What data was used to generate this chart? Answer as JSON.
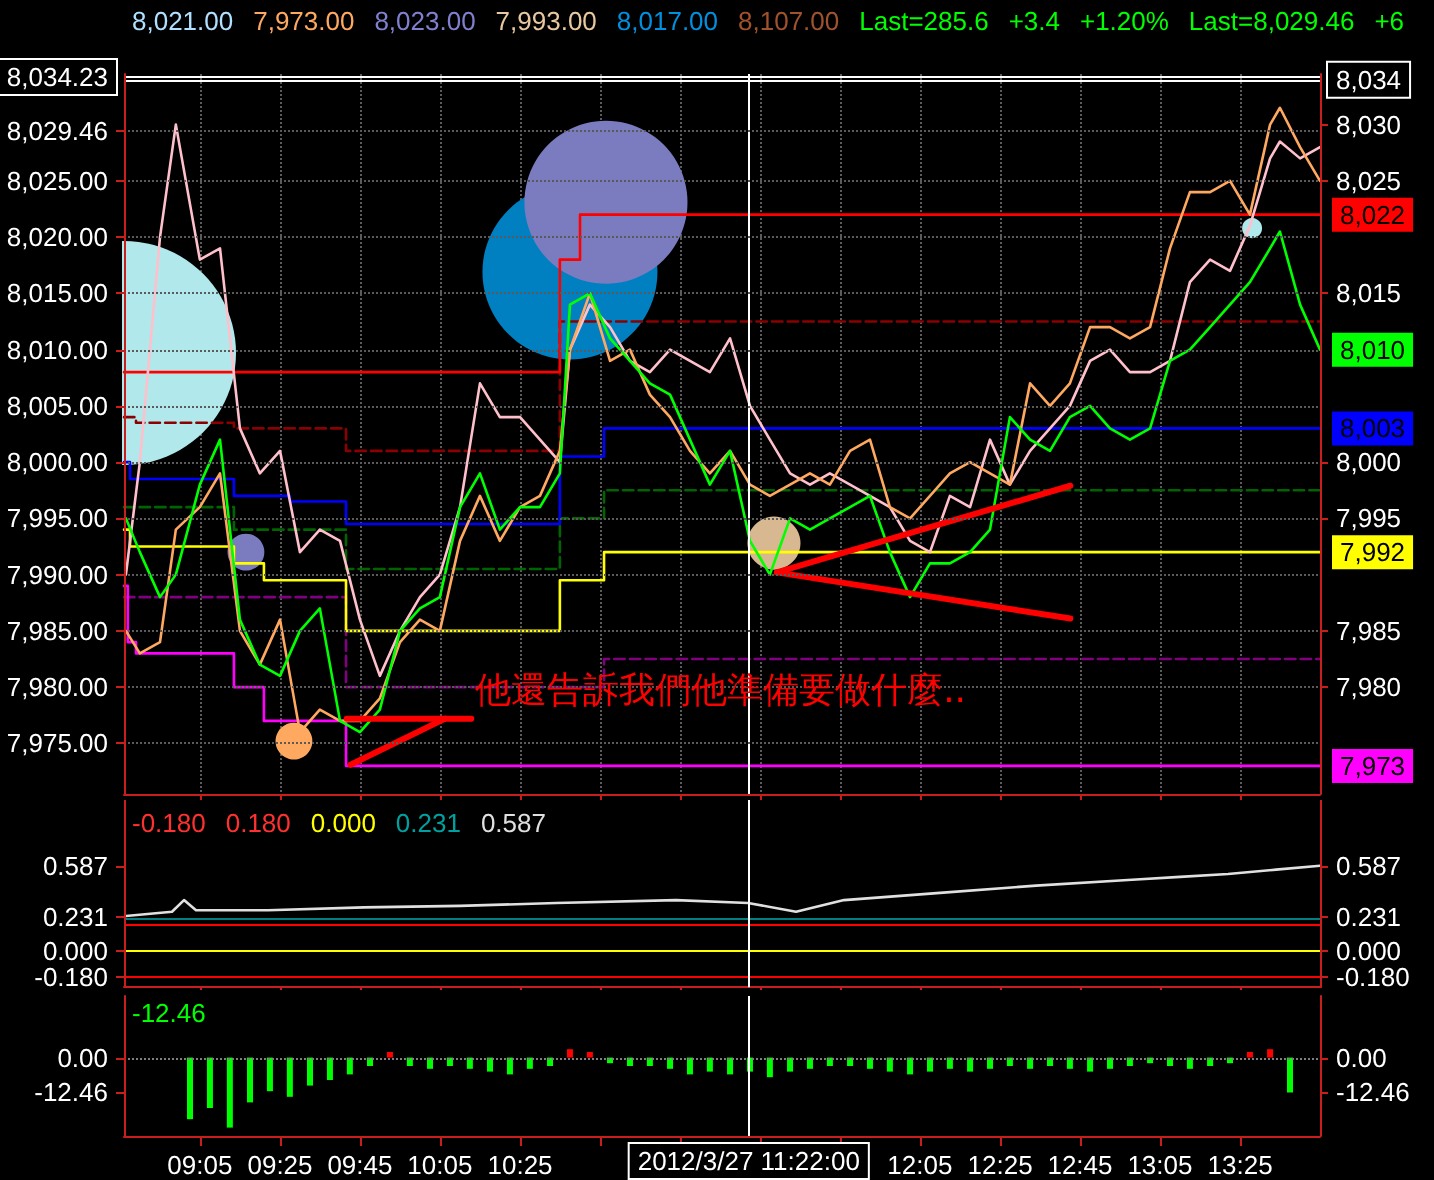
{
  "chart_data": [
    {
      "type": "line",
      "xlim": [
        8.767,
        13.75
      ],
      "ylim": [
        7970.5,
        8034.5
      ],
      "y2lim": [
        7970.5,
        8034.5
      ],
      "grid": true,
      "marker": "none",
      "tick_labels": "y",
      "xticks": [
        {
          "value": 9.083,
          "label": null
        },
        {
          "value": 9.417,
          "label": null
        },
        {
          "value": 9.75,
          "label": null
        },
        {
          "value": 10.083,
          "label": null
        },
        {
          "value": 10.417,
          "label": null
        },
        {
          "value": 10.75,
          "label": null
        },
        {
          "value": 11.083,
          "label": null
        },
        {
          "value": 11.417,
          "label": null
        },
        {
          "value": 11.75,
          "label": null
        },
        {
          "value": 12.083,
          "label": null
        },
        {
          "value": 12.417,
          "label": null
        },
        {
          "value": 12.75,
          "label": null
        },
        {
          "value": 13.083,
          "label": null
        },
        {
          "value": 13.417,
          "label": null
        }
      ],
      "yticks": [
        {
          "value": 7975,
          "label": "7,975.00"
        },
        {
          "value": 7980,
          "label": "7,980.00"
        },
        {
          "value": 7985,
          "label": "7,985.00"
        },
        {
          "value": 7990,
          "label": "7,990.00"
        },
        {
          "value": 7995,
          "label": "7,995.00"
        },
        {
          "value": 8000,
          "label": "8,000.00"
        },
        {
          "value": 8005,
          "label": "8,005.00"
        },
        {
          "value": 8010,
          "label": "8,010.00"
        },
        {
          "value": 8015,
          "label": "8,015.00"
        },
        {
          "value": 8020,
          "label": "8,020.00"
        },
        {
          "value": 8025,
          "label": "8,025.00"
        },
        {
          "value": 8029.46,
          "label": "8,029.46"
        }
      ],
      "y2ticks": [
        {
          "value": 7980,
          "label": "7,980"
        },
        {
          "value": 7985,
          "label": "7,985"
        },
        {
          "value": 7995,
          "label": "7,995"
        },
        {
          "value": 8000,
          "label": "8,000"
        },
        {
          "value": 8015,
          "label": "8,015"
        },
        {
          "value": 8025,
          "label": "8,025"
        },
        {
          "value": 8030,
          "label": "8,030"
        }
      ],
      "x": [
        8.775,
        8.833,
        8.917,
        8.983,
        9.083,
        9.167,
        9.25,
        9.333,
        9.417,
        9.5,
        9.583,
        9.667,
        9.75,
        9.833,
        9.917,
        10.0,
        10.083,
        10.167,
        10.25,
        10.333,
        10.417,
        10.5,
        10.583,
        10.625,
        10.708,
        10.792,
        10.875,
        10.958,
        11.042,
        11.125,
        11.208,
        11.292,
        11.375,
        11.458,
        11.542,
        11.625,
        11.708,
        11.792,
        11.875,
        11.958,
        12.042,
        12.125,
        12.208,
        12.292,
        12.375,
        12.458,
        12.542,
        12.625,
        12.708,
        12.792,
        12.875,
        12.958,
        13.042,
        13.125,
        13.208,
        13.292,
        13.375,
        13.458,
        13.542,
        13.583,
        13.667,
        13.75
      ],
      "series": [
        {
          "type": "bubble",
          "marker": "circle",
          "x": [
            8.767,
            10.625,
            10.775,
            11.475,
            9.275,
            9.475,
            13.467
          ],
          "values": [
            8009.7,
            8016.9,
            8023.1,
            7992.8,
            7992,
            7975.2,
            8020.8
          ],
          "sizes": [
            1,
            0.61,
            0.53,
            0.056,
            0.027,
            0.027,
            0.008
          ],
          "colors": [
            "#b0e8ec",
            "#0080c0",
            "#7b7bbf",
            "#d8b890",
            "#7b7bbf",
            "#ffa860",
            "#b0e8ec"
          ]
        },
        {
          "type": "step",
          "color": "#8b0000",
          "line_style": "dashed",
          "x": [
            8.767,
            8.817,
            9.225,
            9.692,
            10.583,
            13.75
          ],
          "values": [
            8004,
            8003.5,
            8003,
            8001,
            8012.5,
            8012.5
          ]
        },
        {
          "type": "step",
          "color": "#006400",
          "line_style": "dashed",
          "x": [
            8.767,
            9.225,
            9.692,
            10.583,
            10.767,
            13.75
          ],
          "values": [
            7996,
            7994,
            7990.5,
            7995,
            7997.5,
            7997.5
          ]
        },
        {
          "type": "step",
          "color": "#800080",
          "line_style": "dashed",
          "x": [
            8.767,
            9.692,
            10.767,
            13.75
          ],
          "values": [
            7988,
            7980,
            7982.5,
            7982.5
          ]
        },
        {
          "type": "step",
          "color": "#ff0000",
          "x": [
            8.767,
            10.583,
            10.667,
            13.75
          ],
          "values": [
            8008,
            8018,
            8022,
            8022
          ],
          "value_labels": [
            null,
            null,
            null,
            "8,022"
          ]
        },
        {
          "type": "step",
          "color": "#0000ff",
          "x": [
            8.767,
            8.792,
            9.225,
            9.458,
            9.692,
            10.583,
            10.767,
            13.75
          ],
          "values": [
            8000,
            7998.5,
            7997,
            7996.5,
            7994.5,
            8000.5,
            8003,
            8003
          ],
          "value_labels": [
            null,
            null,
            null,
            null,
            null,
            null,
            null,
            "8,003"
          ]
        },
        {
          "type": "step",
          "color": "#ffff00",
          "x": [
            8.767,
            8.792,
            9.225,
            9.35,
            9.692,
            10.583,
            10.767,
            13.75
          ],
          "values": [
            7994,
            7992.5,
            7991,
            7989.5,
            7985,
            7989.5,
            7992,
            7992
          ],
          "value_labels": [
            null,
            null,
            null,
            null,
            null,
            null,
            null,
            "7,992"
          ]
        },
        {
          "type": "step",
          "color": "#ff00ff",
          "x": [
            8.767,
            8.783,
            8.817,
            9.225,
            9.35,
            9.692,
            13.75
          ],
          "values": [
            7989,
            7984,
            7983,
            7980,
            7977,
            7973,
            7973
          ],
          "value_labels": [
            null,
            null,
            null,
            null,
            null,
            null,
            "7,973"
          ]
        },
        {
          "color": "#ffc0cb",
          "values": [
            7990,
            8000,
            8020,
            8030,
            8018,
            8019,
            8003,
            7999,
            8001,
            7992,
            7994,
            7993,
            7986,
            7981,
            7985,
            7988,
            7990,
            7996,
            8007,
            8004,
            8004,
            8002,
            8000,
            8010,
            8014,
            8012,
            8009,
            8008,
            8010,
            8009,
            8008,
            8011,
            8005,
            8002,
            7999,
            7998,
            7999,
            7998,
            7997,
            7996,
            7993,
            7992,
            7997,
            7996,
            8002,
            7998,
            8001,
            8003,
            8005,
            8009,
            8010,
            8008,
            8008,
            8009,
            8016,
            8018,
            8017,
            8021,
            8027,
            8028.5,
            8027,
            8028
          ]
        },
        {
          "color": "#ffa860",
          "values": [
            7985,
            7983,
            7984,
            7994,
            7996,
            7999,
            7985,
            7982,
            7986,
            7976,
            7978,
            7977,
            7977,
            7979,
            7984,
            7986,
            7985,
            7993,
            7997,
            7993,
            7996,
            7997,
            8001,
            8010,
            8015,
            8009,
            8010,
            8006,
            8004,
            8001,
            7999,
            8001,
            7998,
            7997,
            7998,
            7999,
            7998,
            8001,
            8002,
            7996,
            7995,
            7997,
            7999,
            8000,
            7999,
            7998,
            8007,
            8005,
            8007,
            8012,
            8012,
            8011,
            8012,
            8019,
            8024,
            8024,
            8025,
            8022,
            8030,
            8031.5,
            8028,
            8025
          ]
        },
        {
          "color": "#00ff00",
          "values": [
            7995,
            7992,
            7988,
            7990,
            7998,
            8002,
            7986,
            7982,
            7981,
            7985,
            7987,
            7977,
            7976,
            7978,
            7985,
            7987,
            7988,
            7996,
            7999,
            7994,
            7996,
            7996,
            7999,
            8014,
            8015,
            8011,
            8009,
            8007,
            8006,
            8002,
            7998,
            8001,
            7993,
            7990,
            7995,
            7994,
            7995,
            7996,
            7997,
            7992,
            7988,
            7991,
            7991,
            7992,
            7994,
            8004,
            8002,
            8001,
            8004,
            8005,
            8003,
            8002,
            8003,
            8009,
            8010,
            8012,
            8014,
            8016,
            8019,
            8020.5,
            8014,
            8010
          ],
          "value_labels": [
            null,
            null,
            null,
            null,
            null,
            null,
            null,
            null,
            null,
            null,
            null,
            null,
            null,
            null,
            null,
            null,
            null,
            null,
            null,
            null,
            null,
            null,
            null,
            null,
            null,
            null,
            null,
            null,
            null,
            null,
            null,
            null,
            null,
            null,
            null,
            null,
            null,
            null,
            null,
            null,
            null,
            null,
            null,
            null,
            null,
            null,
            null,
            null,
            null,
            null,
            null,
            null,
            null,
            null,
            null,
            null,
            null,
            null,
            null,
            null,
            null,
            "8,010"
          ]
        },
        {
          "color": "#ff0000",
          "x": [
            9.711,
            10.105
          ],
          "values": [
            7973.1,
            7977.2
          ]
        },
        {
          "color": "#ff0000",
          "x": [
            9.695,
            10.214
          ],
          "values": [
            7977.2,
            7977.2
          ]
        },
        {
          "color": "#ff0000",
          "x": [
            11.487,
            12.71
          ],
          "values": [
            7990.2,
            7997.9
          ]
        },
        {
          "color": "#ff0000",
          "x": [
            11.487,
            12.71
          ],
          "values": [
            7990.2,
            7986.1
          ]
        }
      ],
      "ref_lines": [
        {
          "axis": "y",
          "value": 8034.23,
          "label": "8,034.23",
          "color": "#ffffff"
        },
        {
          "axis": "y2",
          "value": 8034,
          "label": "8,034",
          "color": "#ffffff"
        },
        {
          "axis": "x",
          "value": 11.367,
          "color": "#ffffff"
        }
      ],
      "annotations": [
        "8,021.00",
        "7,973.00",
        "8,023.00",
        "7,993.00",
        "8,017.00",
        "8,107.00",
        "Last=285.6",
        "+3.4",
        "+1.20%",
        "Last=8,029.46",
        "+6",
        {
          "text": "他還告訴我們他準備要做什麼..",
          "x": 10.23,
          "y": 7979.5
        }
      ]
    },
    {
      "type": "line",
      "xlim": [
        8.767,
        13.75
      ],
      "ylim": [
        -0.25,
        1.04
      ],
      "y2lim": [
        -0.25,
        1.04
      ],
      "marker": "none",
      "tick_labels": "y",
      "xticks": [
        {
          "value": 9.083,
          "label": null
        },
        {
          "value": 9.417,
          "label": null
        },
        {
          "value": 9.75,
          "label": null
        },
        {
          "value": 10.083,
          "label": null
        },
        {
          "value": 10.417,
          "label": null
        },
        {
          "value": 10.75,
          "label": null
        },
        {
          "value": 11.083,
          "label": null
        },
        {
          "value": 11.417,
          "label": null
        },
        {
          "value": 11.75,
          "label": null
        },
        {
          "value": 12.083,
          "label": null
        },
        {
          "value": 12.417,
          "label": null
        },
        {
          "value": 12.75,
          "label": null
        },
        {
          "value": 13.083,
          "label": null
        },
        {
          "value": 13.417,
          "label": null
        }
      ],
      "yticks": [
        {
          "value": -0.18,
          "label": "-0.180"
        },
        {
          "value": 0,
          "label": "0.000"
        },
        0.231,
        0.587
      ],
      "y2ticks": [
        {
          "value": -0.18,
          "label": "-0.180"
        },
        {
          "value": 0,
          "label": "0.000"
        },
        0.231,
        0.587
      ],
      "series": [
        {
          "color": "#e0e0e0",
          "x": [
            8.775,
            8.967,
            9.017,
            9.067,
            9.367,
            9.767,
            10.167,
            10.567,
            11.067,
            11.367,
            11.567,
            11.767,
            12.167,
            12.567,
            12.967,
            13.167,
            13.367,
            13.567,
            13.75
          ],
          "values": [
            0.24,
            0.27,
            0.35,
            0.28,
            0.28,
            0.3,
            0.31,
            0.33,
            0.35,
            0.33,
            0.27,
            0.35,
            0.4,
            0.45,
            0.49,
            0.51,
            0.53,
            0.56,
            0.587
          ]
        }
      ],
      "ref_lines": [
        {
          "axis": "y",
          "value": 0.231,
          "color": "#008080"
        },
        {
          "axis": "y",
          "value": 0.18,
          "color": "#ff0000"
        },
        {
          "axis": "y",
          "value": 0,
          "color": "#ffff00"
        },
        {
          "axis": "y",
          "value": -0.18,
          "color": "#ff0000"
        },
        {
          "axis": "x",
          "value": 11.367,
          "color": "#ffffff"
        }
      ],
      "annotations": [
        "-0.180",
        "0.180",
        "0.000",
        "0.231",
        "0.587"
      ]
    },
    {
      "type": "bar",
      "xlim": [
        8.767,
        13.75
      ],
      "ylim": [
        -28,
        22
      ],
      "y2lim": [
        -28,
        22
      ],
      "xticks": [
        {
          "value": 9.083,
          "label": "09:05"
        },
        {
          "value": 9.417,
          "label": "09:25"
        },
        {
          "value": 9.75,
          "label": "09:45"
        },
        {
          "value": 10.083,
          "label": "10:05"
        },
        {
          "value": 10.417,
          "label": "10:25"
        },
        {
          "value": 10.75,
          "label": null
        },
        {
          "value": 11.083,
          "label": null
        },
        {
          "value": 11.417,
          "label": null
        },
        {
          "value": 11.75,
          "label": null
        },
        {
          "value": 12.083,
          "label": "12:05"
        },
        {
          "value": 12.417,
          "label": "12:25"
        },
        {
          "value": 12.75,
          "label": "12:45"
        },
        {
          "value": 13.083,
          "label": "13:05"
        },
        {
          "value": 13.417,
          "label": "13:25"
        }
      ],
      "yticks": [
        -12.46,
        {
          "value": 0,
          "label": "0.00"
        }
      ],
      "y2ticks": [
        -12.46,
        {
          "value": 0,
          "label": "0.00"
        }
      ],
      "x": [
        9.042,
        9.125,
        9.208,
        9.292,
        9.375,
        9.458,
        9.542,
        9.625,
        9.708,
        9.792,
        9.875,
        9.958,
        10.042,
        10.125,
        10.208,
        10.292,
        10.375,
        10.458,
        10.542,
        10.625,
        10.708,
        10.792,
        10.875,
        10.958,
        11.042,
        11.125,
        11.208,
        11.292,
        11.375,
        11.458,
        11.542,
        11.625,
        11.708,
        11.792,
        11.875,
        11.958,
        12.042,
        12.125,
        12.208,
        12.292,
        12.375,
        12.458,
        12.542,
        12.625,
        12.708,
        12.792,
        12.875,
        12.958,
        13.042,
        13.125,
        13.208,
        13.292,
        13.375,
        13.458,
        13.542,
        13.625
      ],
      "values": [
        -22,
        -18,
        -25,
        -16,
        -12,
        -14,
        -10,
        -8,
        -6,
        -3,
        2,
        -3,
        -4,
        -3,
        -4,
        -5,
        -6,
        -4,
        -3,
        3,
        2,
        -2,
        -3,
        -3,
        -4,
        -6,
        -5,
        -6,
        -5,
        -7,
        -5,
        -4,
        -3,
        -3,
        -4,
        -5,
        -6,
        -5,
        -4,
        -5,
        -4,
        -3,
        -4,
        -3,
        -4,
        -5,
        -4,
        -3,
        -2,
        -3,
        -4,
        -3,
        -2,
        2,
        3,
        -12.46
      ],
      "colors": [
        "#00ff00",
        "#00ff00",
        "#00ff00",
        "#00ff00",
        "#00ff00",
        "#00ff00",
        "#00ff00",
        "#00ff00",
        "#00ff00",
        "#00ff00",
        "#ff0000",
        "#00ff00",
        "#00ff00",
        "#00ff00",
        "#00ff00",
        "#00ff00",
        "#00ff00",
        "#00ff00",
        "#00ff00",
        "#ff0000",
        "#ff0000",
        "#00ff00",
        "#00ff00",
        "#00ff00",
        "#00ff00",
        "#00ff00",
        "#00ff00",
        "#00ff00",
        "#00ff00",
        "#00ff00",
        "#00ff00",
        "#00ff00",
        "#00ff00",
        "#00ff00",
        "#00ff00",
        "#00ff00",
        "#00ff00",
        "#00ff00",
        "#00ff00",
        "#00ff00",
        "#00ff00",
        "#00ff00",
        "#00ff00",
        "#00ff00",
        "#00ff00",
        "#00ff00",
        "#00ff00",
        "#00ff00",
        "#00ff00",
        "#00ff00",
        "#00ff00",
        "#00ff00",
        "#00ff00",
        "#ff0000",
        "#ff0000",
        "#00ff00"
      ],
      "ref_lines": [
        {
          "axis": "y",
          "value": 0,
          "color": "#808080",
          "line_style": "dotted"
        },
        {
          "axis": "x",
          "value": 11.367,
          "label": "2012/3/27 11:22:00",
          "color": "#ffffff"
        }
      ],
      "annotations": [
        "-12.46"
      ]
    }
  ]
}
